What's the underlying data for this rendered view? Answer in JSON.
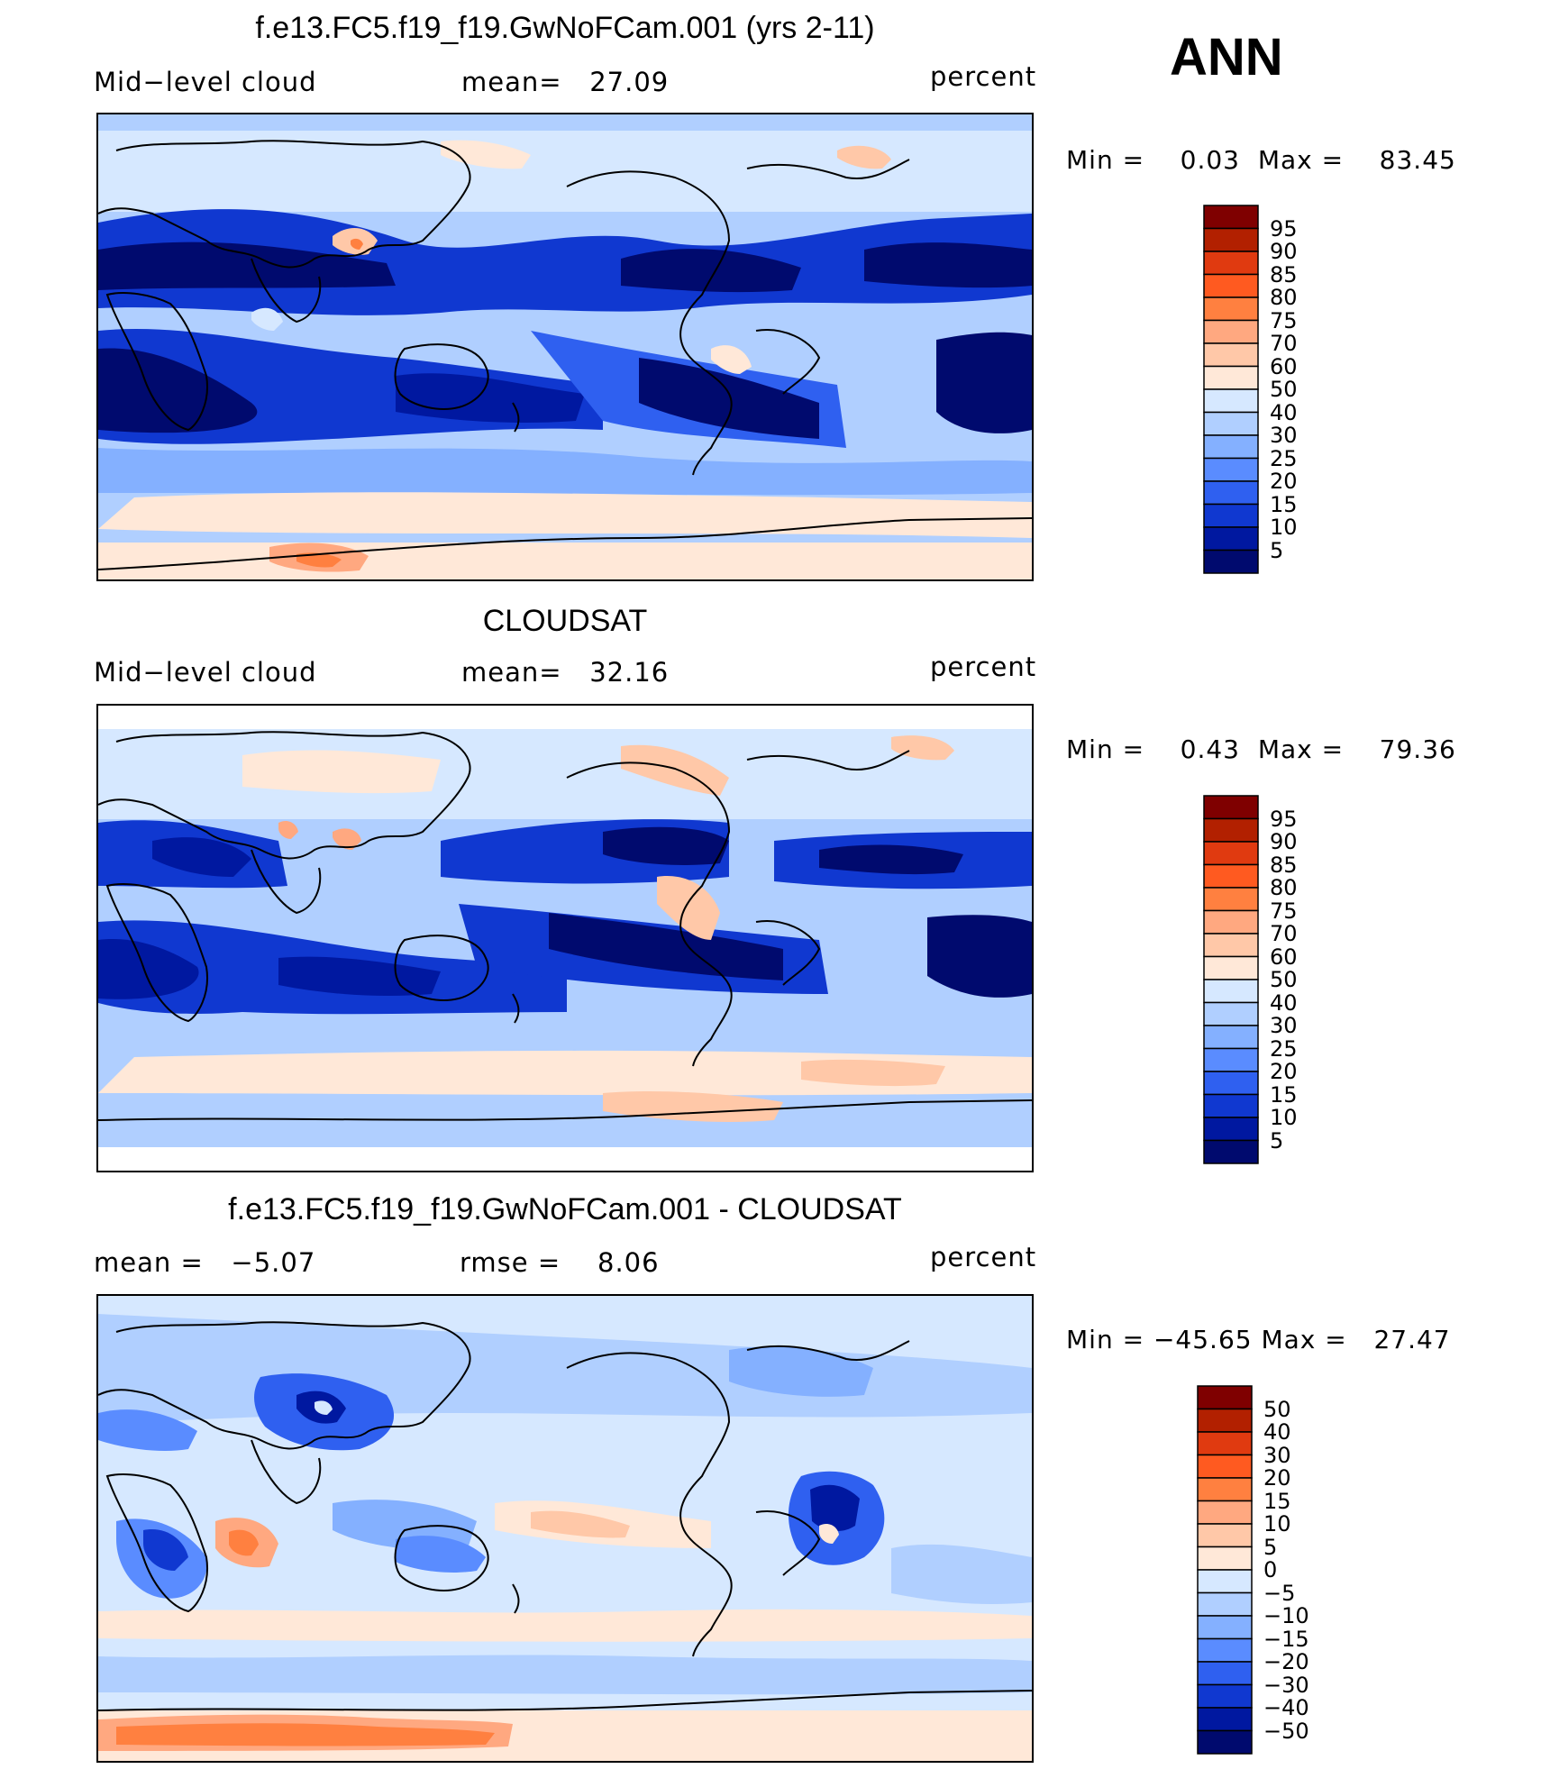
{
  "season": "ANN",
  "panels": [
    {
      "id": "model",
      "title": "f.e13.FC5.f19_f19.GwNoFCam.001 (yrs 2-11)",
      "left_label": "Mid−level  cloud",
      "center_label": "mean=",
      "center_value": "27.09",
      "right_label": "percent",
      "min_label": "Min  =",
      "min_value": "0.03",
      "max_label": "Max  =",
      "max_value": "83.45",
      "colorbar_labels": [
        "95",
        "90",
        "85",
        "80",
        "75",
        "70",
        "60",
        "50",
        "40",
        "30",
        "25",
        "20",
        "15",
        "10",
        "5"
      ]
    },
    {
      "id": "obs",
      "title": "CLOUDSAT",
      "left_label": "Mid−level  cloud",
      "center_label": "mean=",
      "center_value": "32.16",
      "right_label": "percent",
      "min_label": "Min  =",
      "min_value": "0.43",
      "max_label": "Max  =",
      "max_value": "79.36",
      "colorbar_labels": [
        "95",
        "90",
        "85",
        "80",
        "75",
        "70",
        "60",
        "50",
        "40",
        "30",
        "25",
        "20",
        "15",
        "10",
        "5"
      ]
    },
    {
      "id": "diff",
      "title": "f.e13.FC5.f19_f19.GwNoFCam.001 - CLOUDSAT",
      "left_label": "mean  =",
      "left_value": "−5.07",
      "center_label": "rmse  =",
      "center_value": "8.06",
      "right_label": "percent",
      "min_label": "Min  =",
      "min_value": "−45.65",
      "max_label": "Max  =",
      "max_value": "27.47",
      "colorbar_labels": [
        "50",
        "40",
        "30",
        "20",
        "15",
        "10",
        "5",
        "0",
        "−5",
        "−10",
        "−15",
        "−20",
        "−30",
        "−40",
        "−50"
      ]
    }
  ],
  "colors": {
    "cbar16": [
      "#7f0000",
      "#b22000",
      "#e03a10",
      "#ff5a20",
      "#ff8040",
      "#ffa880",
      "#ffc8a8",
      "#ffe8d8",
      "#d6e8ff",
      "#b0cfff",
      "#84b0ff",
      "#5a8cff",
      "#2f60f0",
      "#1038d0",
      "#0018a0",
      "#000a6e"
    ],
    "contour_levels": {
      "l0": "#000a6e",
      "l1": "#0018a0",
      "l2": "#1038d0",
      "l3": "#2f60f0",
      "l4": "#5a8cff",
      "l5": "#84b0ff",
      "l6": "#b0cfff",
      "l7": "#d6e8ff",
      "w1": "#ffe8d8",
      "w2": "#ffc8a8",
      "w3": "#ffa880",
      "w4": "#ff8040"
    },
    "coast": "#000000"
  },
  "chart_data": [
    {
      "type": "heatmap",
      "title": "f.e13.FC5.f19_f19.GwNoFCam.001 (yrs 2-11)",
      "variable": "Mid-level cloud",
      "units": "percent",
      "mean": 27.09,
      "min": 0.03,
      "max": 83.45,
      "contour_levels": [
        5,
        10,
        15,
        20,
        25,
        30,
        40,
        50,
        60,
        70,
        75,
        80,
        85,
        90,
        95
      ]
    },
    {
      "type": "heatmap",
      "title": "CLOUDSAT",
      "variable": "Mid-level cloud",
      "units": "percent",
      "mean": 32.16,
      "min": 0.43,
      "max": 79.36,
      "contour_levels": [
        5,
        10,
        15,
        20,
        25,
        30,
        40,
        50,
        60,
        70,
        75,
        80,
        85,
        90,
        95
      ]
    },
    {
      "type": "heatmap",
      "title": "f.e13.FC5.f19_f19.GwNoFCam.001 - CLOUDSAT",
      "units": "percent",
      "mean": -5.07,
      "rmse": 8.06,
      "min": -45.65,
      "max": 27.47,
      "contour_levels": [
        -50,
        -40,
        -30,
        -20,
        -15,
        -10,
        -5,
        0,
        5,
        10,
        15,
        20,
        30,
        40,
        50
      ]
    }
  ]
}
